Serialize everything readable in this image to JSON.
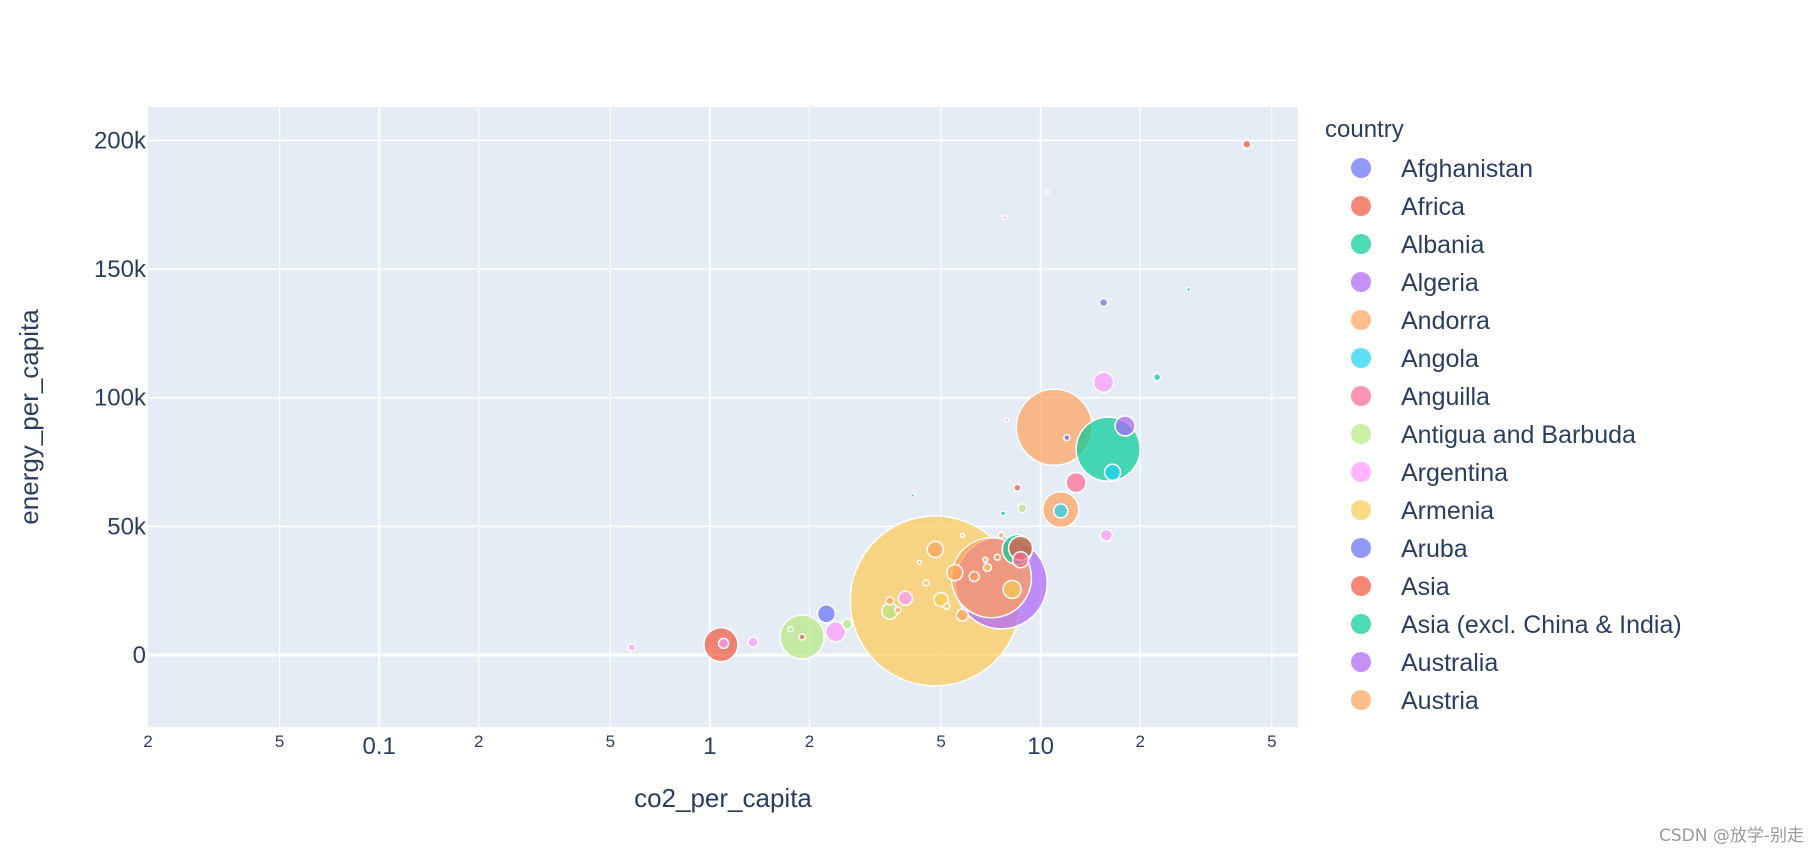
{
  "chart_data": {
    "type": "scatter",
    "bubble": true,
    "xlabel": "co2_per_capita",
    "ylabel": "energy_per_capita",
    "xscale": "log",
    "xlim": [
      0.02,
      60
    ],
    "ylim": [
      -28000,
      213000
    ],
    "grid": true,
    "x_major_ticks": [
      {
        "value": 0.02,
        "label": "2",
        "major": false
      },
      {
        "value": 0.05,
        "label": "5",
        "major": false
      },
      {
        "value": 0.1,
        "label": "0.1",
        "major": true
      },
      {
        "value": 0.2,
        "label": "2",
        "major": false
      },
      {
        "value": 0.5,
        "label": "5",
        "major": false
      },
      {
        "value": 1,
        "label": "1",
        "major": true
      },
      {
        "value": 2,
        "label": "2",
        "major": false
      },
      {
        "value": 5,
        "label": "5",
        "major": false
      },
      {
        "value": 10,
        "label": "10",
        "major": true
      },
      {
        "value": 20,
        "label": "2",
        "major": false
      },
      {
        "value": 50,
        "label": "5",
        "major": false
      }
    ],
    "y_ticks": [
      {
        "value": 0,
        "label": "0"
      },
      {
        "value": 50000,
        "label": "50k"
      },
      {
        "value": 100000,
        "label": "100k"
      },
      {
        "value": 150000,
        "label": "150k"
      },
      {
        "value": 200000,
        "label": "200k"
      }
    ],
    "legend_title": "country",
    "legend_position": "right",
    "colors": [
      "#636efa",
      "#EF553B",
      "#00cc96",
      "#ab63fa",
      "#FFA15A",
      "#19d3f3",
      "#FF6692",
      "#B6E880",
      "#FF97FF",
      "#FECB52"
    ],
    "series": [
      {
        "name": "Afghanistan",
        "color": "#636efa"
      },
      {
        "name": "Africa",
        "color": "#EF553B"
      },
      {
        "name": "Albania",
        "color": "#00cc96"
      },
      {
        "name": "Algeria",
        "color": "#ab63fa"
      },
      {
        "name": "Andorra",
        "color": "#FFA15A"
      },
      {
        "name": "Angola",
        "color": "#19d3f3"
      },
      {
        "name": "Anguilla",
        "color": "#FF6692"
      },
      {
        "name": "Antigua and Barbuda",
        "color": "#B6E880"
      },
      {
        "name": "Argentina",
        "color": "#FF97FF"
      },
      {
        "name": "Armenia",
        "color": "#FECB52"
      },
      {
        "name": "Aruba",
        "color": "#636efa"
      },
      {
        "name": "Asia",
        "color": "#EF553B"
      },
      {
        "name": "Asia (excl. China & India)",
        "color": "#00cc96"
      },
      {
        "name": "Australia",
        "color": "#ab63fa"
      },
      {
        "name": "Austria",
        "color": "#FFA15A"
      }
    ],
    "points": [
      {
        "x": 4.8,
        "y": 21000,
        "s": 85,
        "c": "#FECB52"
      },
      {
        "x": 7.6,
        "y": 28000,
        "s": 46,
        "c": "#ab63fa"
      },
      {
        "x": 7.1,
        "y": 30000,
        "s": 40,
        "c": "#FFA15A"
      },
      {
        "x": 11,
        "y": 88500,
        "s": 38,
        "c": "#FFA15A"
      },
      {
        "x": 16,
        "y": 80000,
        "s": 32,
        "c": "#00cc96"
      },
      {
        "x": 1.9,
        "y": 7000,
        "s": 22,
        "c": "#B6E880"
      },
      {
        "x": 11.5,
        "y": 56500,
        "s": 18,
        "c": "#FFA15A"
      },
      {
        "x": 1.08,
        "y": 4000,
        "s": 17,
        "c": "#EF553B"
      },
      {
        "x": 8.5,
        "y": 41000,
        "s": 15,
        "c": "#00cc96"
      },
      {
        "x": 8.7,
        "y": 41500,
        "s": 12,
        "c": "#EF553B"
      },
      {
        "x": 12.8,
        "y": 67000,
        "s": 10,
        "c": "#FF6692"
      },
      {
        "x": 15.5,
        "y": 106000,
        "s": 10,
        "c": "#FF97FF"
      },
      {
        "x": 18,
        "y": 89000,
        "s": 10,
        "c": "#ab63fa"
      },
      {
        "x": 2.4,
        "y": 9000,
        "s": 10,
        "c": "#FF97FF"
      },
      {
        "x": 2.25,
        "y": 16000,
        "s": 9,
        "c": "#636efa"
      },
      {
        "x": 16.5,
        "y": 71000,
        "s": 8,
        "c": "#19d3f3"
      },
      {
        "x": 11.5,
        "y": 56000,
        "s": 7,
        "c": "#19d3f3"
      },
      {
        "x": 5.5,
        "y": 32000,
        "s": 8,
        "c": "#FFA15A"
      },
      {
        "x": 8.7,
        "y": 37000,
        "s": 8,
        "c": "#FF6692"
      },
      {
        "x": 8.2,
        "y": 25500,
        "s": 9,
        "c": "#FECB52"
      },
      {
        "x": 4.8,
        "y": 41000,
        "s": 8,
        "c": "#FFA15A"
      },
      {
        "x": 3.5,
        "y": 17000,
        "s": 8,
        "c": "#B6E880"
      },
      {
        "x": 3.9,
        "y": 22000,
        "s": 7,
        "c": "#FF97FF"
      },
      {
        "x": 5.0,
        "y": 21500,
        "s": 7,
        "c": "#FECB52"
      },
      {
        "x": 5.8,
        "y": 15500,
        "s": 6,
        "c": "#FFA15A"
      },
      {
        "x": 15.8,
        "y": 46500,
        "s": 6,
        "c": "#FF97FF"
      },
      {
        "x": 1.1,
        "y": 4500,
        "s": 5,
        "c": "#FF97FF"
      },
      {
        "x": 1.35,
        "y": 5000,
        "s": 5,
        "c": "#FF97FF"
      },
      {
        "x": 15.5,
        "y": 137000,
        "s": 4,
        "c": "#636efa"
      },
      {
        "x": 42,
        "y": 198500,
        "s": 4,
        "c": "#EF553B"
      },
      {
        "x": 22.5,
        "y": 108000,
        "s": 3.5,
        "c": "#00cc96"
      },
      {
        "x": 8.8,
        "y": 57000,
        "s": 4.5,
        "c": "#B6E880"
      },
      {
        "x": 8.5,
        "y": 65000,
        "s": 3.5,
        "c": "#EF553B"
      },
      {
        "x": 12,
        "y": 84500,
        "s": 3,
        "c": "#636efa"
      },
      {
        "x": 1.9,
        "y": 7000,
        "s": 3,
        "c": "#EF553B"
      },
      {
        "x": 0.58,
        "y": 3000,
        "s": 3.5,
        "c": "#FF97FF"
      },
      {
        "x": 2.6,
        "y": 12000,
        "s": 5,
        "c": "#B6E880"
      },
      {
        "x": 3.5,
        "y": 21000,
        "s": 4,
        "c": "#FFA15A"
      },
      {
        "x": 6.3,
        "y": 30500,
        "s": 5,
        "c": "#FFA15A"
      },
      {
        "x": 6.9,
        "y": 34000,
        "s": 4,
        "c": "#FECB52"
      },
      {
        "x": 28,
        "y": 142000,
        "s": 2,
        "c": "#00cc96"
      },
      {
        "x": 7.8,
        "y": 170000,
        "s": 2,
        "c": "#FF97FF"
      },
      {
        "x": 10.5,
        "y": 180000,
        "s": 1.5,
        "c": "#FF97FF"
      },
      {
        "x": 7.9,
        "y": 91500,
        "s": 2,
        "c": "#FF97FF"
      },
      {
        "x": 4.1,
        "y": 62000,
        "s": 2,
        "c": "#00cc96"
      },
      {
        "x": 7.7,
        "y": 55000,
        "s": 2.5,
        "c": "#00cc96"
      },
      {
        "x": 7.6,
        "y": 46500,
        "s": 3,
        "c": "#FFA15A"
      },
      {
        "x": 4.5,
        "y": 28000,
        "s": 3,
        "c": "#FECB52"
      },
      {
        "x": 4.3,
        "y": 36000,
        "s": 2,
        "c": "#FFA15A"
      },
      {
        "x": 5.2,
        "y": 19000,
        "s": 3,
        "c": "#FECB52"
      },
      {
        "x": 3.7,
        "y": 17500,
        "s": 3,
        "c": "#FFA15A"
      },
      {
        "x": 7.4,
        "y": 38000,
        "s": 3,
        "c": "#FFA15A"
      },
      {
        "x": 6.8,
        "y": 37000,
        "s": 2.5,
        "c": "#B6E880"
      },
      {
        "x": 1.75,
        "y": 10000,
        "s": 2.5,
        "c": "#B6E880"
      },
      {
        "x": 5.8,
        "y": 46500,
        "s": 2,
        "c": "#B6E880"
      }
    ]
  },
  "watermark": "CSDN @放学-别走"
}
